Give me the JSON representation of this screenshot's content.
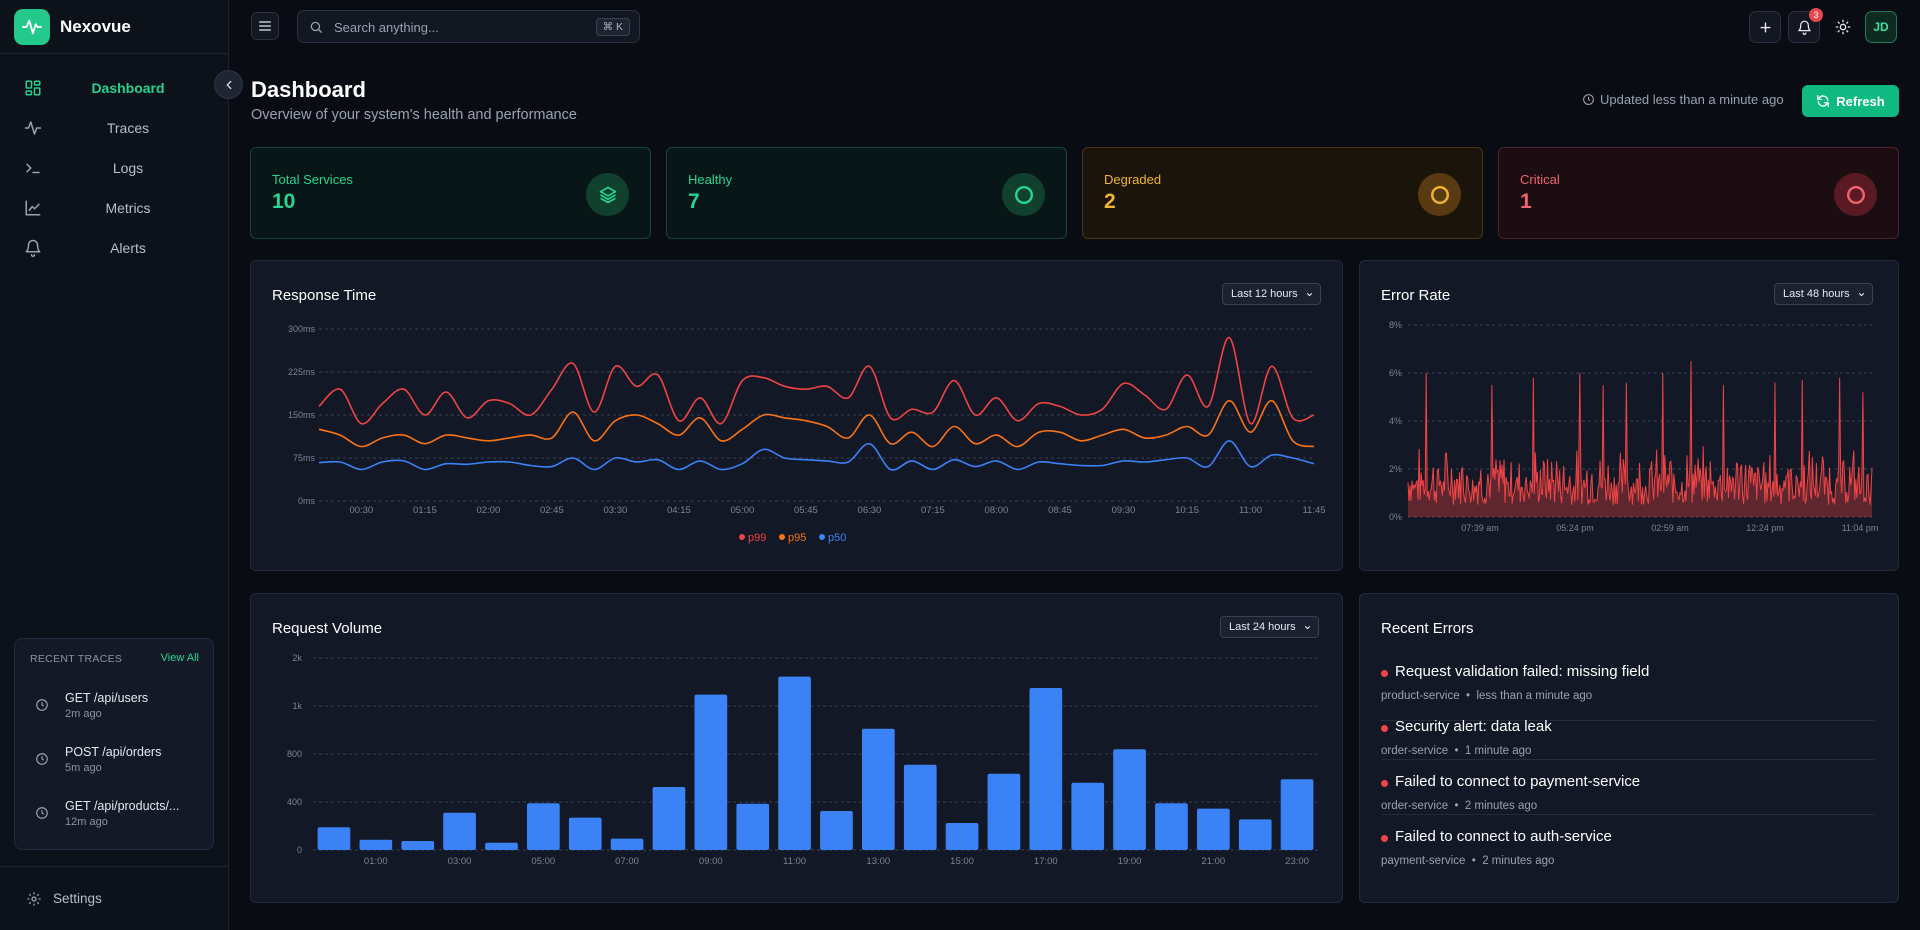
{
  "app": {
    "name": "Nexovue",
    "logo_icon": "pulse-icon",
    "accent": "#22c98a"
  },
  "sidebar": {
    "items": [
      {
        "label": "Dashboard",
        "icon": "dashboard-icon",
        "active": true
      },
      {
        "label": "Traces",
        "icon": "activity-icon"
      },
      {
        "label": "Logs",
        "icon": "terminal-icon"
      },
      {
        "label": "Metrics",
        "icon": "line-chart-icon"
      },
      {
        "label": "Alerts",
        "icon": "bell-icon"
      }
    ],
    "recent_traces": {
      "heading": "RECENT TRACES",
      "view_all": "View All",
      "items": [
        {
          "title": "GET /api/users",
          "time": "2m ago"
        },
        {
          "title": "POST /api/orders",
          "time": "5m ago"
        },
        {
          "title": "GET /api/products/...",
          "time": "12m ago"
        }
      ]
    },
    "settings_label": "Settings"
  },
  "topbar": {
    "search_placeholder": "Search anything...",
    "search_shortcut": "⌘ K",
    "notifications_count": "3",
    "avatar_initials": "JD"
  },
  "header": {
    "title": "Dashboard",
    "subtitle": "Overview of your system's health and performance",
    "updated": "Updated less than a minute ago",
    "refresh_label": "Refresh"
  },
  "stats": {
    "total": {
      "label": "Total Services",
      "value": "10",
      "color": "#25d592"
    },
    "healthy": {
      "label": "Healthy",
      "value": "7",
      "color": "#25d592"
    },
    "degraded": {
      "label": "Degraded",
      "value": "2",
      "color": "#f1b531"
    },
    "critical": {
      "label": "Critical",
      "value": "1",
      "color": "#f06470"
    }
  },
  "panels": {
    "response_time": {
      "title": "Response Time",
      "range": "Last 12 hours"
    },
    "error_rate": {
      "title": "Error Rate",
      "range": "Last 48 hours"
    },
    "request_volume": {
      "title": "Request Volume",
      "range": "Last 24 hours"
    },
    "recent_errors": {
      "title": "Recent Errors",
      "items": [
        {
          "title": "Request validation failed: missing field",
          "service": "product-service",
          "time": "less than a minute ago"
        },
        {
          "title": "Security alert: data leak",
          "service": "order-service",
          "time": "1 minute ago"
        },
        {
          "title": "Failed to connect to payment-service",
          "service": "order-service",
          "time": "2 minutes ago"
        },
        {
          "title": "Failed to connect to auth-service",
          "service": "payment-service",
          "time": "2 minutes ago"
        }
      ]
    }
  },
  "chart_data": [
    {
      "type": "line",
      "title": "Response Time",
      "x": [
        "00:00",
        "00:15",
        "00:30",
        "00:45",
        "01:00",
        "01:15",
        "01:30",
        "01:45",
        "02:00",
        "02:15",
        "02:30",
        "02:45",
        "03:00",
        "03:15",
        "03:30",
        "03:45",
        "04:00",
        "04:15",
        "04:30",
        "04:45",
        "05:00",
        "05:15",
        "05:30",
        "05:45",
        "06:00",
        "06:15",
        "06:30",
        "06:45",
        "07:00",
        "07:15",
        "07:30",
        "07:45",
        "08:00",
        "08:15",
        "08:30",
        "08:45",
        "09:00",
        "09:15",
        "09:30",
        "09:45",
        "10:00",
        "10:15",
        "10:30",
        "10:45",
        "11:00",
        "11:15",
        "11:30",
        "11:45"
      ],
      "xticks": [
        "00:30",
        "01:15",
        "02:00",
        "02:45",
        "03:30",
        "04:15",
        "05:00",
        "05:45",
        "06:30",
        "07:15",
        "08:00",
        "08:45",
        "09:30",
        "10:15",
        "11:00",
        "11:45"
      ],
      "yticks": [
        "0ms",
        "75ms",
        "150ms",
        "225ms",
        "300ms"
      ],
      "ylim": [
        0,
        300
      ],
      "grid": true,
      "legend_position": "bottom-center",
      "series": [
        {
          "name": "p99",
          "color": "#ef4444",
          "values": [
            165,
            195,
            135,
            170,
            195,
            150,
            190,
            145,
            175,
            170,
            150,
            195,
            240,
            155,
            235,
            200,
            220,
            140,
            180,
            135,
            210,
            215,
            200,
            195,
            200,
            180,
            235,
            145,
            160,
            155,
            210,
            150,
            180,
            140,
            170,
            165,
            150,
            160,
            205,
            185,
            160,
            220,
            165,
            285,
            135,
            235,
            145,
            150
          ]
        },
        {
          "name": "p95",
          "color": "#f97316",
          "values": [
            125,
            115,
            95,
            110,
            115,
            100,
            115,
            110,
            105,
            110,
            115,
            110,
            155,
            105,
            140,
            150,
            135,
            115,
            145,
            105,
            125,
            150,
            145,
            140,
            130,
            110,
            150,
            100,
            120,
            95,
            130,
            100,
            115,
            95,
            120,
            120,
            105,
            115,
            125,
            110,
            115,
            130,
            115,
            175,
            120,
            175,
            105,
            95
          ]
        },
        {
          "name": "p50",
          "color": "#3b82f6",
          "values": [
            67,
            68,
            55,
            68,
            70,
            55,
            65,
            64,
            68,
            68,
            62,
            60,
            75,
            55,
            75,
            68,
            72,
            55,
            70,
            55,
            65,
            90,
            75,
            72,
            70,
            68,
            100,
            55,
            70,
            55,
            72,
            60,
            70,
            55,
            68,
            65,
            62,
            62,
            70,
            68,
            72,
            75,
            60,
            105,
            60,
            80,
            75,
            65
          ]
        }
      ]
    },
    {
      "type": "area",
      "title": "Error Rate",
      "xticks": [
        "07:39 am",
        "05:24 pm",
        "02:59 am",
        "12:24 pm",
        "11:04 pm"
      ],
      "yticks": [
        "0%",
        "2%",
        "4%",
        "6%",
        "8%"
      ],
      "ylim": [
        0,
        8
      ],
      "grid": true,
      "series": [
        {
          "name": "",
          "color": "#ef4444",
          "spikes": [
            [
              0.04,
              6.0
            ],
            [
              0.18,
              5.5
            ],
            [
              0.27,
              5.8
            ],
            [
              0.37,
              6.0
            ],
            [
              0.42,
              5.5
            ],
            [
              0.47,
              5.6
            ],
            [
              0.55,
              6.0
            ],
            [
              0.61,
              6.5
            ],
            [
              0.68,
              5.5
            ],
            [
              0.79,
              5.6
            ],
            [
              0.85,
              5.7
            ],
            [
              0.93,
              5.8
            ],
            [
              0.98,
              5.2
            ]
          ],
          "baseline_range": [
            0.5,
            2.8
          ]
        }
      ]
    },
    {
      "type": "bar",
      "title": "Request Volume",
      "categories": [
        "00:00",
        "01:00",
        "02:00",
        "03:00",
        "04:00",
        "05:00",
        "06:00",
        "07:00",
        "08:00",
        "09:00",
        "10:00",
        "11:00",
        "12:00",
        "13:00",
        "14:00",
        "15:00",
        "16:00",
        "17:00",
        "18:00",
        "19:00",
        "20:00",
        "21:00",
        "22:00",
        "23:00"
      ],
      "xticks": [
        "01:00",
        "03:00",
        "05:00",
        "07:00",
        "09:00",
        "11:00",
        "13:00",
        "15:00",
        "17:00",
        "19:00",
        "21:00",
        "23:00"
      ],
      "yticks": [
        "0",
        "400",
        "800",
        "1k",
        "2k"
      ],
      "ytick_positions": [
        0,
        400,
        800,
        1200,
        1600
      ],
      "values": [
        190,
        85,
        75,
        310,
        60,
        390,
        270,
        95,
        525,
        1295,
        385,
        1445,
        325,
        1010,
        710,
        225,
        635,
        1350,
        560,
        840,
        390,
        345,
        255,
        590
      ],
      "color": "#3b82f6",
      "grid": true
    }
  ]
}
